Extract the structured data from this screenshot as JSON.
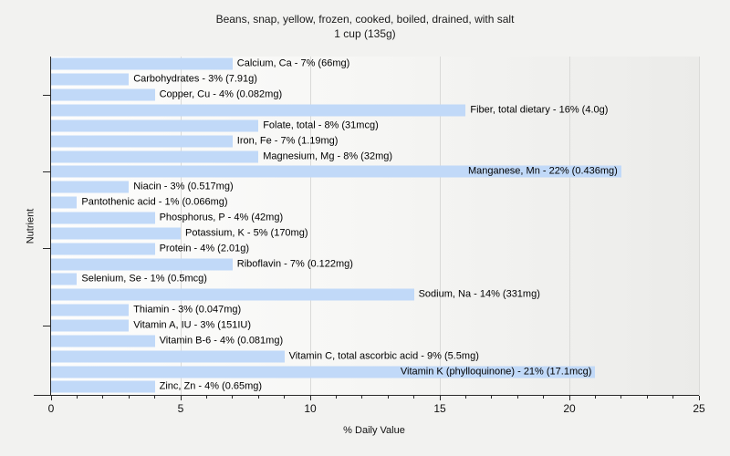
{
  "title": "Beans, snap, yellow, frozen, cooked, boiled, drained, with salt",
  "subtitle": "1 cup (135g)",
  "colors": {
    "page_background": "#f2f2f0",
    "plot_background_left": "#fdfdfc",
    "plot_background_right": "#ebebe9",
    "bar_fill": "#c1d9f8",
    "gridline": "#dadad8",
    "axis": "#2a2a2a",
    "text": "#1b1b1b"
  },
  "chart_data": {
    "type": "bar",
    "orientation": "horizontal",
    "title": "Beans, snap, yellow, frozen, cooked, boiled, drained, with salt",
    "subtitle": "1 cup (135g)",
    "xlabel": "% Daily Value",
    "ylabel": "Nutrient",
    "xlim": [
      0,
      25
    ],
    "x_major_ticks": [
      0,
      5,
      10,
      15,
      20,
      25
    ],
    "x_minor_tick_step": 1,
    "y_tick_rows": [
      3,
      8,
      13,
      18
    ],
    "grid": "vertical major gridlines only",
    "legend": "none",
    "bars": [
      {
        "label": "Calcium, Ca - 7% (66mg)",
        "nutrient": "Calcium, Ca",
        "percent_dv": 7,
        "amount": "66mg",
        "label_inside": false
      },
      {
        "label": "Carbohydrates - 3% (7.91g)",
        "nutrient": "Carbohydrates",
        "percent_dv": 3,
        "amount": "7.91g",
        "label_inside": false
      },
      {
        "label": "Copper, Cu - 4% (0.082mg)",
        "nutrient": "Copper, Cu",
        "percent_dv": 4,
        "amount": "0.082mg",
        "label_inside": false
      },
      {
        "label": "Fiber, total dietary - 16% (4.0g)",
        "nutrient": "Fiber, total dietary",
        "percent_dv": 16,
        "amount": "4.0g",
        "label_inside": false
      },
      {
        "label": "Folate, total - 8% (31mcg)",
        "nutrient": "Folate, total",
        "percent_dv": 8,
        "amount": "31mcg",
        "label_inside": false
      },
      {
        "label": "Iron, Fe - 7% (1.19mg)",
        "nutrient": "Iron, Fe",
        "percent_dv": 7,
        "amount": "1.19mg",
        "label_inside": false
      },
      {
        "label": "Magnesium, Mg - 8% (32mg)",
        "nutrient": "Magnesium, Mg",
        "percent_dv": 8,
        "amount": "32mg",
        "label_inside": false
      },
      {
        "label": "Manganese, Mn - 22% (0.436mg)",
        "nutrient": "Manganese, Mn",
        "percent_dv": 22,
        "amount": "0.436mg",
        "label_inside": true
      },
      {
        "label": "Niacin - 3% (0.517mg)",
        "nutrient": "Niacin",
        "percent_dv": 3,
        "amount": "0.517mg",
        "label_inside": false
      },
      {
        "label": "Pantothenic acid - 1% (0.066mg)",
        "nutrient": "Pantothenic acid",
        "percent_dv": 1,
        "amount": "0.066mg",
        "label_inside": false
      },
      {
        "label": "Phosphorus, P - 4% (42mg)",
        "nutrient": "Phosphorus, P",
        "percent_dv": 4,
        "amount": "42mg",
        "label_inside": false
      },
      {
        "label": "Potassium, K - 5% (170mg)",
        "nutrient": "Potassium, K",
        "percent_dv": 5,
        "amount": "170mg",
        "label_inside": false
      },
      {
        "label": "Protein - 4% (2.01g)",
        "nutrient": "Protein",
        "percent_dv": 4,
        "amount": "2.01g",
        "label_inside": false
      },
      {
        "label": "Riboflavin - 7% (0.122mg)",
        "nutrient": "Riboflavin",
        "percent_dv": 7,
        "amount": "0.122mg",
        "label_inside": false
      },
      {
        "label": "Selenium, Se - 1% (0.5mcg)",
        "nutrient": "Selenium, Se",
        "percent_dv": 1,
        "amount": "0.5mcg",
        "label_inside": false
      },
      {
        "label": "Sodium, Na - 14% (331mg)",
        "nutrient": "Sodium, Na",
        "percent_dv": 14,
        "amount": "331mg",
        "label_inside": false
      },
      {
        "label": "Thiamin - 3% (0.047mg)",
        "nutrient": "Thiamin",
        "percent_dv": 3,
        "amount": "0.047mg",
        "label_inside": false
      },
      {
        "label": "Vitamin A, IU - 3% (151IU)",
        "nutrient": "Vitamin A, IU",
        "percent_dv": 3,
        "amount": "151IU",
        "label_inside": false
      },
      {
        "label": "Vitamin B-6 - 4% (0.081mg)",
        "nutrient": "Vitamin B-6",
        "percent_dv": 4,
        "amount": "0.081mg",
        "label_inside": false
      },
      {
        "label": "Vitamin C, total ascorbic acid - 9% (5.5mg)",
        "nutrient": "Vitamin C, total ascorbic acid",
        "percent_dv": 9,
        "amount": "5.5mg",
        "label_inside": false
      },
      {
        "label": "Vitamin K (phylloquinone) - 21% (17.1mcg)",
        "nutrient": "Vitamin K (phylloquinone)",
        "percent_dv": 21,
        "amount": "17.1mcg",
        "label_inside": true
      },
      {
        "label": "Zinc, Zn - 4% (0.65mg)",
        "nutrient": "Zinc, Zn",
        "percent_dv": 4,
        "amount": "0.65mg",
        "label_inside": false
      }
    ]
  }
}
